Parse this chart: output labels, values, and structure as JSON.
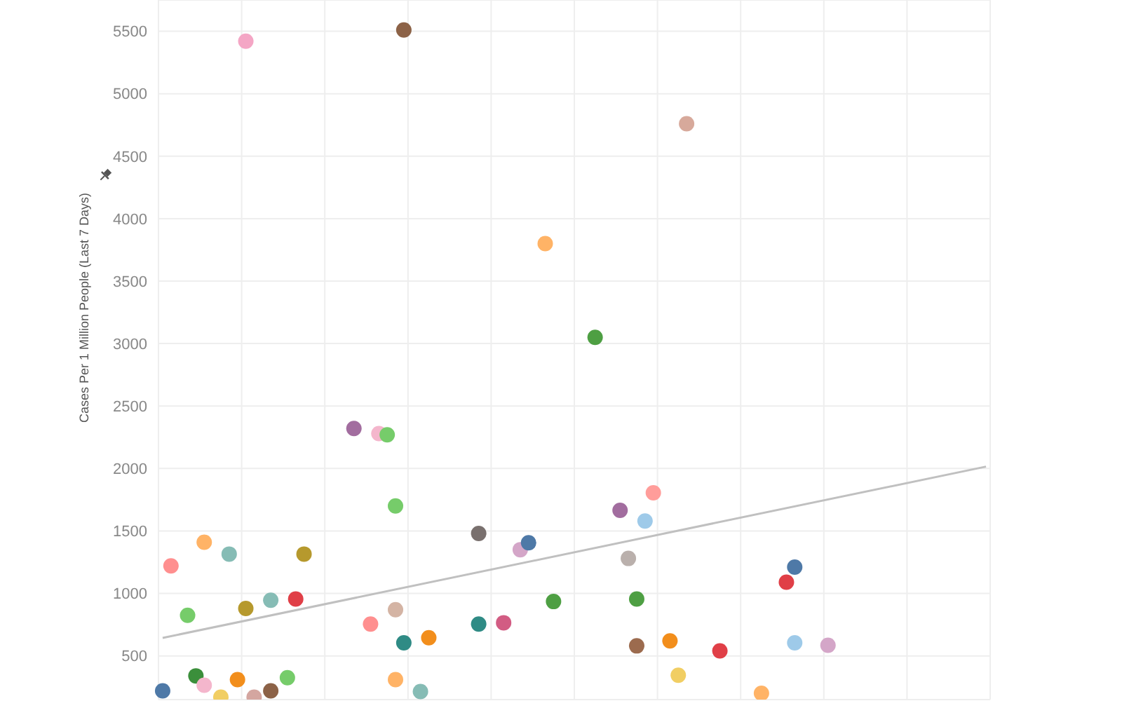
{
  "chart_data": {
    "type": "scatter",
    "ylabel": "Cases Per 1 Million People (Last 7 Days)",
    "categories": [
      null,
      null,
      null,
      null,
      null,
      null,
      null,
      null,
      null,
      null,
      null,
      null,
      null,
      null,
      null,
      null,
      null,
      null,
      null,
      null,
      null,
      null,
      null,
      null,
      null,
      null,
      null,
      null,
      null,
      null,
      null,
      null,
      null,
      null,
      null,
      null,
      null,
      null,
      null,
      null,
      null,
      null,
      null,
      null,
      null,
      null,
      null,
      null,
      null,
      null,
      null,
      null,
      null,
      null,
      null,
      null,
      null,
      null,
      null,
      null,
      null,
      null,
      null,
      null,
      null,
      null,
      null,
      null,
      null,
      null,
      null,
      null,
      null,
      null,
      null,
      null,
      null,
      null,
      null,
      null,
      null,
      null,
      null,
      null,
      null,
      null,
      null,
      null,
      null,
      null,
      null,
      null,
      null,
      null,
      null,
      null,
      null,
      null,
      null,
      null
    ],
    "ylim": [
      150,
      5750
    ],
    "yticks": [
      500,
      1000,
      1500,
      2000,
      2500,
      3000,
      3500,
      4000,
      4500,
      5000,
      5500
    ],
    "grid": true,
    "tick_labels": "y",
    "marker": "circle",
    "series": [
      {
        "values": [
          220,
          1220,
          null,
          825,
          340,
          1410,
          null,
          170,
          1315,
          310,
          5420,
          170,
          null,
          945,
          null,
          325,
          955,
          1315,
          null,
          null,
          null,
          null,
          null,
          2320,
          null,
          755,
          2280,
          2270,
          1700,
          5510,
          null,
          215,
          645,
          null,
          null,
          null,
          null,
          null,
          1480,
          null,
          null,
          765,
          null,
          1350,
          1405,
          null,
          3800,
          935,
          null,
          null,
          null,
          null,
          3050,
          null,
          null,
          1665,
          1280,
          955,
          1580,
          1805,
          null,
          620,
          345,
          4760,
          null,
          null,
          null,
          540,
          null,
          null,
          null,
          null,
          200,
          null,
          null,
          1090,
          1210,
          null,
          null,
          null,
          585,
          null,
          null,
          null,
          null,
          null,
          null,
          null,
          null,
          null,
          null,
          null,
          null,
          null,
          null,
          null,
          null,
          null,
          null,
          null
        ],
        "colors": [
          "#4e79a7",
          "#ff8f8f",
          null,
          "#76cc6a",
          "#3b8f3b",
          "#ffb366",
          null,
          "#f1ce63",
          "#86bcb5",
          "#f28e1c",
          "#f4a6c5",
          "#d4a6a0",
          null,
          "#86bcb5",
          null,
          "#76cc6a",
          "#e03f47",
          "#b6992d",
          null,
          null,
          null,
          null,
          null,
          "#a26d9f",
          null,
          "#ff8f8f",
          "#f4b6cc",
          "#76cc6a",
          "#76cc6a",
          "#8c6247",
          null,
          "#86bcb5",
          "#f28e1c",
          null,
          null,
          null,
          null,
          null,
          "#79706e",
          null,
          null,
          "#d25c83",
          null,
          "#d4a6c8",
          "#4e79a7",
          null,
          "#ffb366",
          "#4e9f43",
          null,
          null,
          null,
          null,
          "#4e9f43",
          null,
          null,
          "#a26d9f",
          "#bab0ac",
          "#4e9f43",
          "#9ecae9",
          "#ff9d9a",
          null,
          "#f28e1c",
          "#f1ce63",
          "#d7a99b",
          null,
          null,
          null,
          "#e03f47",
          null,
          null,
          null,
          null,
          "#ffb366",
          null,
          null,
          "#e03f47",
          "#4e79a7",
          null,
          null,
          null,
          "#d4a6c8",
          null,
          null,
          null,
          null,
          null,
          null,
          null,
          null,
          null,
          null,
          null,
          null,
          null,
          null,
          null,
          null,
          null,
          null,
          null
        ]
      },
      {
        "values": [
          null,
          null,
          null,
          null,
          null,
          265,
          null,
          null,
          null,
          null,
          880,
          null,
          null,
          220,
          null,
          null,
          null,
          null,
          null,
          null,
          null,
          null,
          null,
          null,
          null,
          null,
          null,
          null,
          870,
          605,
          null,
          null,
          null,
          null,
          null,
          null,
          null,
          null,
          755,
          null,
          null,
          null,
          null,
          null,
          null,
          null,
          null,
          null,
          null,
          null,
          null,
          null,
          null,
          null,
          null,
          null,
          null,
          580,
          null,
          null,
          null,
          null,
          null,
          null,
          null,
          null,
          null,
          null,
          null,
          null,
          null,
          null,
          null,
          null,
          null,
          null,
          605,
          null,
          null,
          null,
          null,
          null,
          null,
          null,
          null,
          null,
          null,
          null,
          null,
          null,
          null,
          null,
          null,
          null,
          null,
          null,
          null,
          null,
          null,
          null
        ],
        "colors": [
          null,
          null,
          null,
          null,
          null,
          "#f4b6cc",
          null,
          null,
          null,
          null,
          "#b6992d",
          null,
          null,
          "#8c6247",
          null,
          null,
          null,
          null,
          null,
          null,
          null,
          null,
          null,
          null,
          null,
          null,
          null,
          null,
          "#d4b4a4",
          "#2f8b85",
          null,
          null,
          null,
          null,
          null,
          null,
          null,
          null,
          "#2f8b85",
          null,
          null,
          null,
          null,
          null,
          null,
          null,
          null,
          null,
          null,
          null,
          null,
          null,
          null,
          null,
          null,
          null,
          null,
          "#9c6b4e",
          null,
          null,
          null,
          null,
          null,
          null,
          null,
          null,
          null,
          null,
          null,
          null,
          null,
          null,
          null,
          null,
          null,
          null,
          "#9ecae9",
          null,
          null,
          null,
          null,
          null,
          null,
          null,
          null,
          null,
          null,
          null,
          null,
          null,
          null,
          null,
          null,
          null,
          null,
          null,
          null,
          null,
          null,
          null
        ]
      },
      {
        "values": [
          null,
          null,
          null,
          null,
          null,
          null,
          null,
          null,
          null,
          null,
          null,
          null,
          null,
          null,
          null,
          null,
          null,
          null,
          null,
          null,
          null,
          null,
          null,
          null,
          null,
          null,
          null,
          null,
          310,
          null,
          null,
          null,
          null,
          null,
          null,
          null,
          null,
          null,
          null,
          null,
          null,
          null,
          null,
          null,
          null,
          null,
          null,
          null,
          null,
          null,
          null,
          null,
          null,
          null,
          null,
          null,
          null,
          null,
          null,
          null,
          null,
          null,
          null,
          null,
          null,
          null,
          null,
          null,
          null,
          null,
          null,
          null,
          null,
          null,
          null,
          null,
          null,
          null,
          null,
          null,
          null,
          null,
          null,
          null,
          null,
          null,
          null,
          null,
          null,
          null,
          null,
          null,
          null,
          null,
          null,
          null,
          null,
          null,
          null,
          null
        ],
        "colors": [
          null,
          null,
          null,
          null,
          null,
          null,
          null,
          null,
          null,
          null,
          null,
          null,
          null,
          null,
          null,
          null,
          null,
          null,
          null,
          null,
          null,
          null,
          null,
          null,
          null,
          null,
          null,
          null,
          "#ffb366",
          null,
          null,
          null,
          null,
          null,
          null,
          null,
          null,
          null,
          null,
          null,
          null,
          null,
          null,
          null,
          null,
          null,
          null,
          null,
          null,
          null,
          null,
          null,
          null,
          null,
          null,
          null,
          null,
          null,
          null,
          null,
          null,
          null,
          null,
          null,
          null,
          null,
          null,
          null,
          null,
          null,
          null,
          null,
          null,
          null,
          null,
          null,
          null,
          null,
          null,
          null,
          null,
          null,
          null,
          null,
          null,
          null,
          null,
          null,
          null,
          null,
          null,
          null,
          null,
          null,
          null,
          null,
          null,
          null,
          null,
          null
        ]
      },
      {
        "type": "line",
        "marker": "none",
        "color": "#c0c0c0",
        "values": [
          644,
          null,
          null,
          null,
          null,
          null,
          null,
          null,
          null,
          null,
          null,
          null,
          null,
          null,
          null,
          null,
          null,
          null,
          null,
          null,
          null,
          null,
          null,
          null,
          null,
          null,
          null,
          null,
          null,
          null,
          null,
          null,
          null,
          null,
          null,
          null,
          null,
          null,
          null,
          null,
          null,
          null,
          null,
          null,
          null,
          null,
          null,
          null,
          null,
          null,
          null,
          null,
          null,
          null,
          null,
          null,
          null,
          null,
          null,
          null,
          null,
          null,
          null,
          null,
          null,
          null,
          null,
          null,
          null,
          null,
          null,
          null,
          null,
          null,
          null,
          null,
          null,
          null,
          null,
          null,
          null,
          null,
          null,
          null,
          null,
          null,
          null,
          null,
          null,
          null,
          null,
          null,
          null,
          null,
          null,
          null,
          null,
          null,
          null,
          2015
        ]
      }
    ]
  }
}
